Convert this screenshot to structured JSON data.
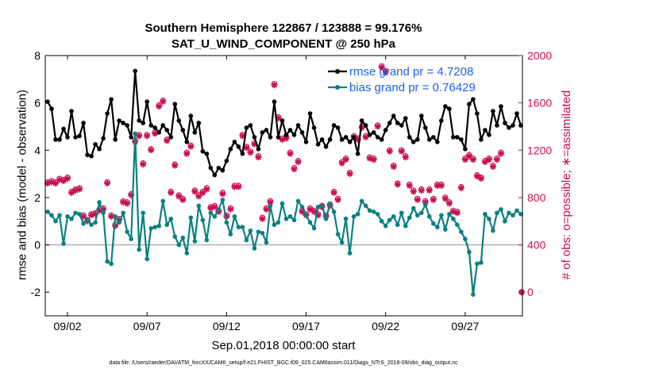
{
  "chart_data": {
    "type": "line",
    "title": "Southern Hemisphere 122867 / 123888 = 99.176%",
    "subtitle": "SAT_U_WIND_COMPONENT @ 250 hPa",
    "xlabel": "Sep.01,2018 00:00:00 start",
    "ylabel": "rmse and bias (model - observation)",
    "y2label": "# of obs: o=possible; ∗=assimilated",
    "footer": "data file: /Users/raeder/DAI/ATM_forcXX/CAM6_setup/f.e21.FHIST_BGC.f09_025.CAM6assim.011/Diags_NTrS_2018-09/obs_diag_output.nc",
    "xlim": [
      0.6,
      30.6
    ],
    "ylim": [
      -3,
      8
    ],
    "y2lim": [
      -200,
      2000
    ],
    "x_ticks": [
      2,
      7,
      12,
      17,
      22,
      27
    ],
    "x_tick_labels": [
      "09/02",
      "09/07",
      "09/12",
      "09/17",
      "09/22",
      "09/27"
    ],
    "y_ticks": [
      -2,
      0,
      2,
      4,
      6,
      8
    ],
    "y_tick_labels": [
      "-2",
      "0",
      "2",
      "4",
      "6",
      "8"
    ],
    "y2_ticks": [
      0,
      400,
      800,
      1200,
      1600,
      2000
    ],
    "y2_tick_labels": [
      "0",
      "400",
      "800",
      "1200",
      "1600",
      "2000"
    ],
    "zero_line": 0,
    "legend": {
      "location": "top-right",
      "entries": [
        "rmse grand pr = 4.7208",
        "bias grand pr = 0.76429"
      ]
    },
    "colors": {
      "rmse": "#000000",
      "bias": "#0a8080",
      "obs": "#cc0d52",
      "legend_text": "#1f5ee8",
      "zero_line": "#b0b0b0"
    },
    "series": [
      {
        "name": "rmse",
        "x_start": 0.75,
        "dx": 0.25,
        "values": [
          6.05,
          5.75,
          4.45,
          4.45,
          4.9,
          4.55,
          5.65,
          4.55,
          4.6,
          5.15,
          3.8,
          3.75,
          4.25,
          4.05,
          4.5,
          5.55,
          6.15,
          4.45,
          5.25,
          5.15,
          5.05,
          4.55,
          7.35,
          5.25,
          5.15,
          6.05,
          5.05,
          4.95,
          4.75,
          5.05,
          4.85,
          4.55,
          5.95,
          5.25,
          4.85,
          4.35,
          5.45,
          4.75,
          5.15,
          3.95,
          3.85,
          3.25,
          2.95,
          3.25,
          3.15,
          3.55,
          4.05,
          4.35,
          4.15,
          3.85,
          4.95,
          5.05,
          4.55,
          4.05,
          4.75,
          4.85,
          4.55,
          6.05,
          4.55,
          5.25,
          4.65,
          4.85,
          4.65,
          5.05,
          4.75,
          4.35,
          5.55,
          4.95,
          4.25,
          4.45,
          4.15,
          4.45,
          5.05,
          4.95,
          4.45,
          4.55,
          4.35,
          4.55,
          3.85,
          5.25,
          5.05,
          4.65,
          4.75,
          4.55,
          4.45,
          4.85,
          5.15,
          5.45,
          5.15,
          5.05,
          5.35,
          4.55,
          4.35,
          4.45,
          5.45,
          4.95,
          4.45,
          4.55,
          4.35,
          5.25,
          5.85,
          5.75,
          4.55,
          4.55,
          4.45,
          4.05,
          5.95,
          6.15,
          5.55,
          4.45,
          4.85,
          4.65,
          5.65,
          5.05,
          5.85,
          5.15,
          4.95,
          5.05,
          5.55,
          5.05
        ]
      },
      {
        "name": "bias",
        "x_start": 0.75,
        "dx": 0.25,
        "values": [
          1.4,
          1.25,
          1.0,
          1.25,
          0.05,
          1.2,
          1.1,
          1.35,
          1.3,
          0.9,
          1.05,
          0.85,
          0.95,
          1.8,
          1.35,
          -0.7,
          -0.8,
          1.2,
          0.95,
          1.35,
          0.55,
          0.25,
          4.7,
          -0.2,
          1.35,
          -0.6,
          0.7,
          0.75,
          0.8,
          1.85,
          0.85,
          1.1,
          0.35,
          0.0,
          0.3,
          -0.35,
          1.15,
          0.15,
          1.65,
          1.05,
          0.2,
          1.35,
          1.2,
          1.5,
          1.9,
          0.95,
          0.45,
          1.2,
          0.75,
          0.75,
          0.2,
          0.6,
          -0.15,
          0.55,
          0.5,
          0.1,
          1.65,
          0.85,
          0.95,
          1.75,
          1.1,
          1.2,
          1.05,
          1.85,
          1.6,
          1.25,
          0.95,
          0.7,
          1.6,
          1.65,
          1.1,
          1.75,
          1.4,
          0.45,
          0.1,
          1.1,
          -0.35,
          1.2,
          1.3,
          1.85,
          1.65,
          1.45,
          1.4,
          1.3,
          1.0,
          0.8,
          1.05,
          1.2,
          0.85,
          1.35,
          0.8,
          1.15,
          1.55,
          1.25,
          1.35,
          1.7,
          1.2,
          0.9,
          0.75,
          1.25,
          0.65,
          1.3,
          1.1,
          0.85,
          0.55,
          0.25,
          -0.3,
          -2.1,
          -0.8,
          -0.75,
          1.3,
          1.1,
          0.6,
          1.35,
          1.5,
          1.0,
          1.35,
          1.25,
          1.45,
          1.3
        ]
      },
      {
        "name": "obs_assimilated",
        "axis": "right",
        "x_start": 0.75,
        "dx": 0.25,
        "values": [
          920,
          930,
          920,
          950,
          940,
          960,
          840,
          860,
          870,
          640,
          600,
          650,
          660,
          690,
          700,
          920,
          640,
          560,
          610,
          760,
          750,
          820,
          1270,
          1320,
          1080,
          1320,
          1200,
          1340,
          1570,
          1610,
          1280,
          840,
          1070,
          810,
          780,
          1170,
          1230,
          850,
          810,
          840,
          870,
          710,
          720,
          680,
          830,
          640,
          700,
          890,
          890,
          1320,
          1220,
          1180,
          1250,
          1140,
          620,
          700,
          760,
          1750,
          1470,
          1290,
          1300,
          1170,
          1040,
          1100,
          680,
          650,
          700,
          680,
          650,
          720,
          640,
          730,
          840,
          780,
          1090,
          1120,
          1000,
          1310,
          1290,
          1390,
          1310,
          1130,
          1120,
          1400,
          1900,
          1860,
          1190,
          1060,
          910,
          1190,
          1140,
          900,
          850,
          780,
          860,
          760,
          860,
          780,
          900,
          900,
          790,
          750,
          680,
          670,
          880,
          1120,
          1150,
          1120,
          980,
          960,
          1100,
          1120,
          1060,
          1120,
          1170
        ]
      },
      {
        "name": "obs_possible",
        "axis": "right",
        "x_start": 0.75,
        "dx": 0.25,
        "values": [
          930,
          940,
          930,
          960,
          950,
          970,
          850,
          870,
          880,
          650,
          610,
          660,
          670,
          700,
          710,
          930,
          650,
          570,
          620,
          770,
          760,
          830,
          1280,
          1330,
          1090,
          1330,
          1210,
          1350,
          1580,
          1620,
          1290,
          850,
          1080,
          820,
          790,
          1180,
          1240,
          860,
          820,
          850,
          880,
          720,
          730,
          690,
          840,
          650,
          710,
          900,
          900,
          1330,
          1230,
          1190,
          1260,
          1150,
          630,
          710,
          770,
          1760,
          1480,
          1300,
          1310,
          1180,
          1050,
          1110,
          690,
          660,
          710,
          690,
          660,
          730,
          650,
          740,
          850,
          790,
          1100,
          1130,
          1010,
          1320,
          1300,
          1400,
          1320,
          1140,
          1130,
          1410,
          1910,
          1870,
          1200,
          1070,
          920,
          1200,
          1150,
          910,
          860,
          790,
          870,
          770,
          870,
          790,
          910,
          910,
          800,
          760,
          690,
          680,
          890,
          1130,
          1160,
          1130,
          990,
          970,
          1110,
          1130,
          1070,
          1130,
          1180
        ]
      }
    ],
    "extra_obs_point": {
      "x": 30.55,
      "value": 0
    }
  }
}
